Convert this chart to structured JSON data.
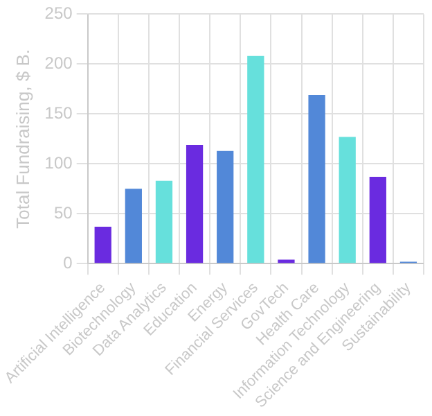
{
  "chart_data": {
    "type": "bar",
    "ylabel": "Total Fundraising, $ B.",
    "categories": [
      "Artificial Intelligence",
      "Biotechnology",
      "Data Analytics",
      "Education",
      "Energy",
      "Financial Services",
      "GovTech",
      "Health Care",
      "Information Technology",
      "Science and Engineering",
      "Sustainability"
    ],
    "values": [
      37,
      75,
      83,
      119,
      113,
      208,
      4,
      169,
      127,
      87,
      2
    ],
    "colors": [
      "#6a2be0",
      "#5288d8",
      "#66e0dc",
      "#6a2be0",
      "#5288d8",
      "#66e0dc",
      "#6a2be0",
      "#5288d8",
      "#66e0dc",
      "#6a2be0",
      "#5288d8"
    ],
    "ylim": [
      0,
      250
    ],
    "yticks": [
      0,
      50,
      100,
      150,
      200,
      250
    ],
    "grid": true,
    "legend": false
  }
}
